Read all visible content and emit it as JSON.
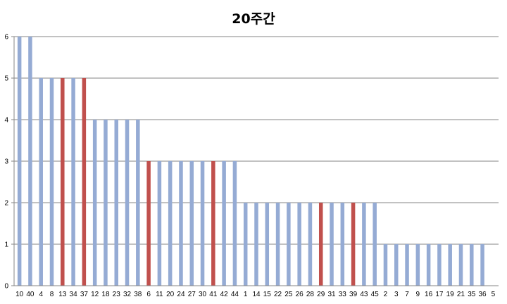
{
  "chart_data": {
    "type": "bar",
    "title": "20주간",
    "xlabel": "",
    "ylabel": "",
    "ylim": [
      0,
      6
    ],
    "yticks": [
      0,
      1,
      2,
      3,
      4,
      5,
      6
    ],
    "grid": true,
    "categories": [
      "10",
      "40",
      "4",
      "8",
      "13",
      "34",
      "37",
      "12",
      "18",
      "23",
      "32",
      "38",
      "6",
      "11",
      "20",
      "24",
      "27",
      "30",
      "41",
      "42",
      "44",
      "1",
      "14",
      "15",
      "22",
      "25",
      "26",
      "28",
      "29",
      "31",
      "33",
      "39",
      "43",
      "45",
      "2",
      "3",
      "7",
      "9",
      "16",
      "17",
      "19",
      "21",
      "35",
      "36",
      "5"
    ],
    "values": [
      6,
      6,
      5,
      5,
      5,
      5,
      5,
      4,
      4,
      4,
      4,
      4,
      3,
      3,
      3,
      3,
      3,
      3,
      3,
      3,
      3,
      2,
      2,
      2,
      2,
      2,
      2,
      2,
      2,
      2,
      2,
      2,
      2,
      2,
      1,
      1,
      1,
      1,
      1,
      1,
      1,
      1,
      1,
      1,
      0
    ],
    "highlighted": [
      "13",
      "37",
      "6",
      "41",
      "29",
      "39"
    ],
    "colors": {
      "bar": "#95abd4",
      "highlight": "#c0504d",
      "grid": "#868686",
      "axis": "#868686"
    }
  }
}
